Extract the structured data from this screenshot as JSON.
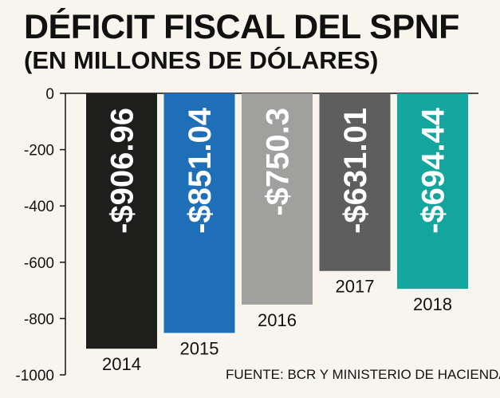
{
  "chart_data": {
    "type": "bar",
    "title": "DÉFICIT FISCAL DEL SPNF",
    "subtitle": "(EN MILLONES DE DÓLARES)",
    "categories": [
      "2014",
      "2015",
      "2016",
      "2017",
      "2018"
    ],
    "values": [
      -906.96,
      -851.04,
      -750.3,
      -631.01,
      -694.44
    ],
    "data_labels": [
      "-$906.96",
      "-$851.04",
      "-$750.3",
      "-$631.01",
      "-$694.44"
    ],
    "colors": [
      "#1e1e1c",
      "#1f6fb8",
      "#a0a09f",
      "#5e5e5e",
      "#14a59e"
    ],
    "ylim": [
      -1000,
      0
    ],
    "yticks": [
      0,
      -200,
      -400,
      -600,
      -800,
      -1000
    ],
    "ytick_labels": [
      "0",
      "-200",
      "-400",
      "-600",
      "-800",
      "-1000"
    ],
    "grid": false,
    "legend": "none",
    "source": "FUENTE: BCR Y MINISTERIO DE HACIENDA"
  }
}
